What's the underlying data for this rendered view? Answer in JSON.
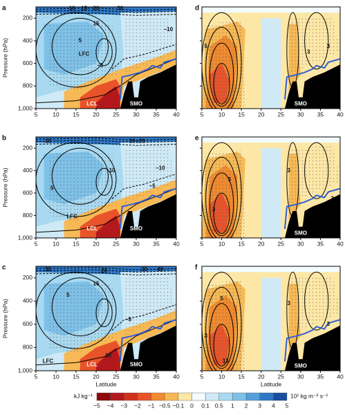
{
  "chart_data": [
    {
      "type": "contour",
      "panel_label": "a",
      "xlim": [
        5,
        40
      ],
      "ylim": [
        1000,
        100
      ],
      "xticks": [
        5,
        10,
        15,
        20,
        25,
        30,
        35,
        40
      ],
      "yticks": [
        200,
        400,
        600,
        800,
        {
          "value": 1000,
          "label": "1,000"
        }
      ],
      "ylabel": "Pressure (hPa)",
      "annotations": [
        "LFC",
        "LCL",
        "SMO",
        "10",
        "15",
        "20",
        "30",
        "5",
        "−5",
        "−10",
        "15"
      ]
    },
    {
      "type": "contour",
      "panel_label": "b",
      "xlim": [
        5,
        40
      ],
      "ylim": [
        1000,
        100
      ],
      "xticks": [
        5,
        10,
        15,
        20,
        25,
        30,
        35,
        40
      ],
      "yticks": [
        200,
        400,
        600,
        800,
        {
          "value": 1000,
          "label": "1,000"
        }
      ],
      "ylabel": "Pressure (hPa)",
      "annotations": [
        "LFC",
        "LCL",
        "SMO",
        "10",
        "20",
        "−20",
        "5",
        "10",
        "−5",
        "−10"
      ]
    },
    {
      "type": "contour",
      "panel_label": "c",
      "xlim": [
        5,
        40
      ],
      "ylim": [
        1000,
        100
      ],
      "xticks": [
        5,
        10,
        15,
        20,
        25,
        30,
        35,
        40
      ],
      "yticks": [
        200,
        400,
        600,
        800,
        {
          "value": 1000,
          "label": "1,000"
        }
      ],
      "ylabel": "Pressure (hPa)",
      "xlabel": "Latitude",
      "annotations": [
        "LFC",
        "LCL",
        "SMO",
        "30",
        "20",
        "30",
        "40",
        "15",
        "10",
        "5",
        "−5"
      ]
    },
    {
      "type": "contour",
      "panel_label": "d",
      "xlim": [
        5,
        40
      ],
      "ylim": [
        1000,
        100
      ],
      "xticks": [
        5,
        10,
        15,
        20,
        25,
        30,
        35,
        40
      ],
      "yticks": [
        200,
        400,
        600,
        800,
        1000
      ],
      "show_ytick_labels": false,
      "annotations": [
        "SMO",
        "5",
        "3",
        "3"
      ]
    },
    {
      "type": "contour",
      "panel_label": "e",
      "xlim": [
        5,
        40
      ],
      "ylim": [
        1000,
        100
      ],
      "xticks": [
        5,
        10,
        15,
        20,
        25,
        30,
        35,
        40
      ],
      "yticks": [
        200,
        400,
        600,
        800,
        1000
      ],
      "show_ytick_labels": false,
      "annotations": [
        "SMO",
        "3",
        "5",
        "3",
        "3"
      ]
    },
    {
      "type": "contour",
      "panel_label": "f",
      "xlim": [
        5,
        40
      ],
      "ylim": [
        1000,
        100
      ],
      "xticks": [
        5,
        10,
        15,
        20,
        25,
        30,
        35,
        40
      ],
      "yticks": [
        200,
        400,
        600,
        800,
        1000
      ],
      "show_ytick_labels": false,
      "xlabel": "Latitude",
      "annotations": [
        "SMO",
        "3",
        "5",
        "13",
        "3",
        "3"
      ]
    }
  ],
  "colorbar": {
    "left_unit": "kJ kg⁻¹",
    "right_unit": "10¹ kg m⁻² s⁻¹",
    "ticks": [
      {
        "value": -5,
        "label": "−5"
      },
      {
        "value": -4,
        "label": "−4"
      },
      {
        "value": -3,
        "label": "−3"
      },
      {
        "value": -2,
        "label": "−2"
      },
      {
        "value": -1,
        "label": "−1"
      },
      {
        "value": -0.5,
        "label": "−0.5"
      },
      {
        "value": -0.1,
        "label": "−0.1"
      },
      0,
      0.1,
      0.5,
      1,
      2,
      3,
      4,
      5
    ],
    "colors": [
      "#8e0a0a",
      "#b3191c",
      "#d2301d",
      "#e8532a",
      "#f08a2e",
      "#f7b955",
      "#fde7a6",
      "#f3fbfd",
      "#cfeaf6",
      "#a8d9f0",
      "#7ec1e8",
      "#569fdb",
      "#2f78c6",
      "#1a4fa0"
    ]
  }
}
